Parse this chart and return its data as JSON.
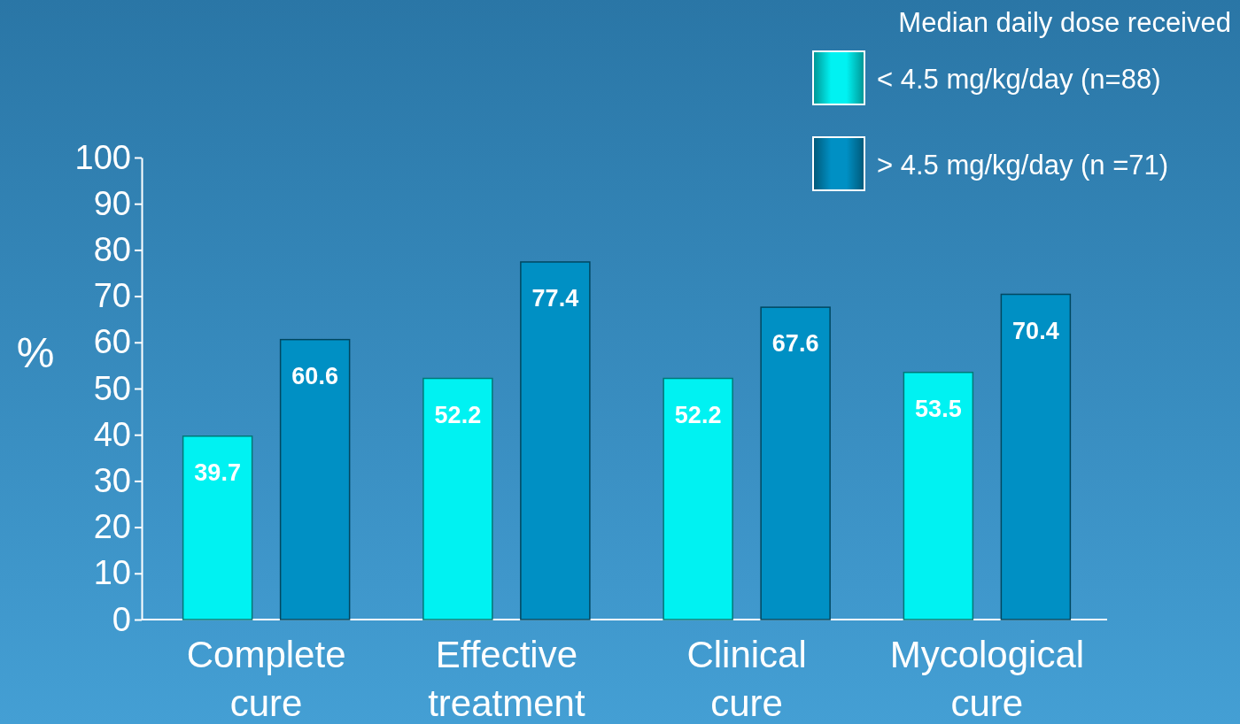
{
  "chart_data": {
    "type": "bar",
    "ylabel": "%",
    "legend_title": "Median daily dose received",
    "categories": [
      "Complete cure",
      "Effective treatment",
      "Clinical cure",
      "Mycological cure"
    ],
    "series": [
      {
        "name": "< 4.5 mg/kg/day (n=88)",
        "color": "#00f2f2",
        "values": [
          39.7,
          52.2,
          52.2,
          53.5
        ]
      },
      {
        "name": "> 4.5 mg/kg/day (n =71)",
        "color": "#0090c4",
        "values": [
          60.6,
          77.4,
          67.6,
          70.4
        ]
      }
    ],
    "ylim": [
      0,
      100
    ],
    "yticks": [
      0,
      10,
      20,
      30,
      40,
      50,
      60,
      70,
      80,
      90,
      100
    ],
    "data_labels": true,
    "legend": "top right"
  }
}
